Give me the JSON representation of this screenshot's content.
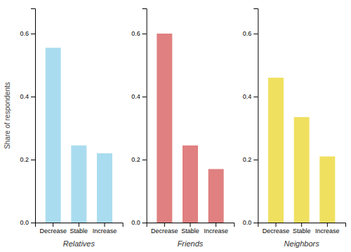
{
  "chart_data": [
    {
      "type": "bar",
      "xlabel": "Relatives",
      "ylabel": "Share of respondents",
      "categories": [
        "Decrease",
        "Stable",
        "Increase"
      ],
      "values": [
        0.555,
        0.245,
        0.22
      ],
      "color": "#aadcf0",
      "ylim": [
        0.0,
        0.68
      ],
      "yticks": [
        {
          "value": 0.0,
          "label": "0.0"
        },
        0.2,
        0.4,
        0.6
      ],
      "grid": false
    },
    {
      "type": "bar",
      "xlabel": "Friends",
      "categories": [
        "Decrease",
        "Stable",
        "Increase"
      ],
      "values": [
        0.6,
        0.245,
        0.17
      ],
      "color": "#e08080",
      "ylim": [
        0.0,
        0.68
      ],
      "yticks": [
        {
          "value": 0.0,
          "label": "0.0"
        },
        0.2,
        0.4,
        0.6
      ],
      "grid": false
    },
    {
      "type": "bar",
      "xlabel": "Neighbors",
      "categories": [
        "Decrease",
        "Stable",
        "Increase"
      ],
      "values": [
        0.46,
        0.335,
        0.21
      ],
      "color": "#f0e060",
      "ylim": [
        0.0,
        0.68
      ],
      "yticks": [
        {
          "value": 0.0,
          "label": "0.0"
        },
        0.2,
        0.4,
        0.6
      ],
      "grid": false
    }
  ]
}
